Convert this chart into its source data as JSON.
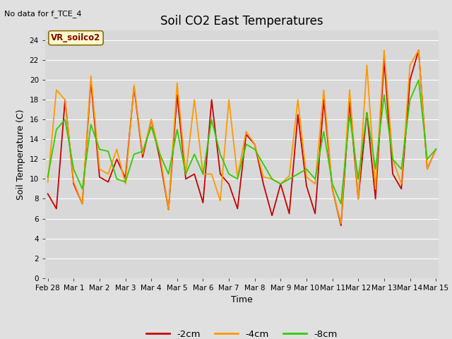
{
  "title": "Soil CO2 East Temperatures",
  "no_data_label": "No data for f_TCE_4",
  "legend_label": "VR_soilco2",
  "xlabel": "Time",
  "ylabel": "Soil Temperature (C)",
  "ylim": [
    0,
    25
  ],
  "yticks": [
    0,
    2,
    4,
    6,
    8,
    10,
    12,
    14,
    16,
    18,
    20,
    22,
    24
  ],
  "fig_bg_color": "#e0e0e0",
  "plot_bg_color": "#d8d8d8",
  "grid_color": "#ffffff",
  "line_colors": {
    "2cm": "#cc0000",
    "4cm": "#ff9900",
    "8cm": "#33cc00"
  },
  "legend_entries": [
    "-2cm",
    "-4cm",
    "-8cm"
  ],
  "x_tick_labels": [
    "Feb 28",
    "Mar 1",
    "Mar 2",
    "Mar 3",
    "Mar 4",
    "Mar 5",
    "Mar 6",
    "Mar 7",
    "Mar 8",
    "Mar 9",
    "Mar 10",
    "Mar 11",
    "Mar 12",
    "Mar 13",
    "Mar 14",
    "Mar 15"
  ],
  "data_2cm": [
    8.5,
    7.0,
    18.0,
    9.5,
    7.5,
    19.9,
    10.2,
    9.7,
    12.0,
    10.1,
    19.3,
    12.2,
    16.0,
    12.0,
    6.9,
    18.5,
    10.0,
    10.5,
    7.6,
    18.0,
    10.5,
    9.5,
    7.0,
    14.5,
    13.5,
    9.5,
    6.3,
    9.5,
    6.5,
    16.5,
    9.3,
    6.5,
    18.0,
    9.0,
    5.3,
    17.8,
    8.0,
    16.7,
    8.0,
    22.0,
    10.5,
    9.0,
    20.0,
    23.0,
    11.0,
    13.0
  ],
  "data_4cm": [
    9.7,
    19.0,
    18.0,
    9.7,
    7.5,
    20.4,
    11.0,
    10.5,
    13.0,
    9.5,
    19.5,
    12.5,
    16.0,
    12.5,
    6.9,
    19.7,
    10.5,
    18.0,
    10.5,
    10.5,
    7.8,
    18.0,
    10.2,
    14.8,
    13.5,
    10.2,
    10.0,
    9.5,
    10.3,
    18.0,
    10.2,
    9.5,
    19.0,
    9.0,
    5.5,
    19.0,
    8.0,
    21.5,
    9.0,
    23.0,
    12.0,
    9.5,
    21.5,
    23.0,
    11.0,
    13.0
  ],
  "data_8cm": [
    10.2,
    15.0,
    16.0,
    11.0,
    9.0,
    15.5,
    13.0,
    12.8,
    10.0,
    9.7,
    12.5,
    12.8,
    15.3,
    12.5,
    10.5,
    15.0,
    10.5,
    12.5,
    10.5,
    16.0,
    12.5,
    10.5,
    10.0,
    13.5,
    13.0,
    11.5,
    10.0,
    9.5,
    10.0,
    10.5,
    11.0,
    10.0,
    14.8,
    9.5,
    7.5,
    16.5,
    10.0,
    16.7,
    11.0,
    18.5,
    12.0,
    11.0,
    18.0,
    20.0,
    12.0,
    13.0
  ],
  "n_points": 46,
  "n_days": 15.0
}
